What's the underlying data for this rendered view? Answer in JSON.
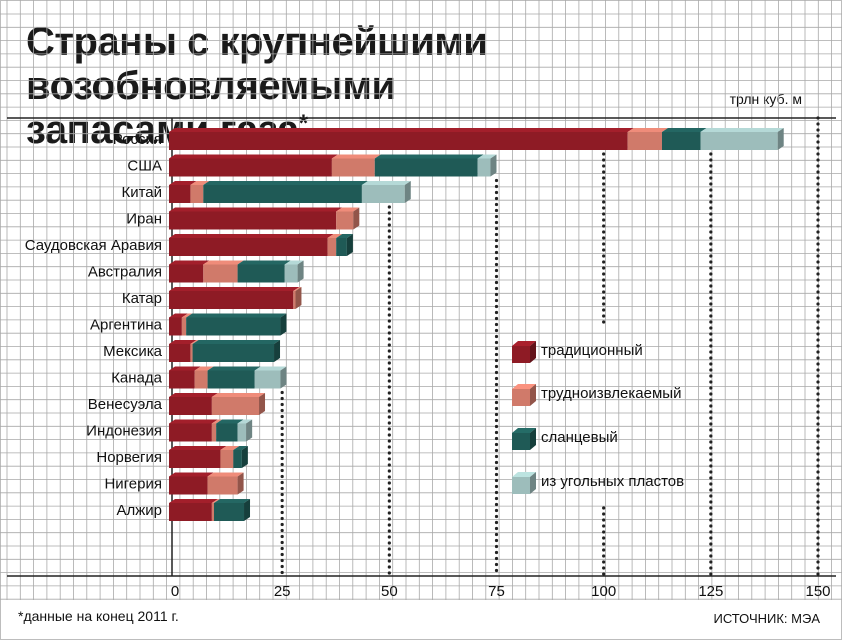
{
  "header": {
    "title_line1": "Страны с крупнейшими возобновляемыми",
    "title_line2": "запасами газа",
    "title_mark": "*",
    "unit": "трлн куб. м"
  },
  "footer": {
    "footnote": "*данные на конец 2011 г.",
    "source": "ИСТОЧНИК: МЭА"
  },
  "colors": {
    "traditional": "#8e1b25",
    "tight": "#d07a6a",
    "shale": "#1f5a56",
    "coalbed": "#9dbdbb",
    "grid": "#a9a9a9"
  },
  "chart_data": {
    "type": "bar",
    "orientation": "horizontal",
    "stacked": true,
    "xlim": [
      0,
      150
    ],
    "xticks": [
      0,
      25,
      50,
      75,
      100,
      125,
      150
    ],
    "legend_position": "right-middle",
    "categories": [
      "Россия",
      "США",
      "Китай",
      "Иран",
      "Саудовская Аравия",
      "Австралия",
      "Катар",
      "Аргентина",
      "Мексика",
      "Канада",
      "Венесуэла",
      "Индонезия",
      "Норвегия",
      "Нигерия",
      "Алжир"
    ],
    "series": [
      {
        "name": "традиционный",
        "color": "#8e1b25",
        "values": [
          107,
          38,
          5,
          39,
          37,
          8,
          29,
          3,
          5,
          6,
          10,
          10,
          12,
          9,
          10
        ]
      },
      {
        "name": "трудноизвлекаемый",
        "color": "#d07a6a",
        "values": [
          8,
          10,
          3,
          4,
          2,
          8,
          0.5,
          1,
          0.5,
          3,
          11,
          1,
          3,
          7,
          0.5
        ]
      },
      {
        "name": "сланцевый",
        "color": "#1f5a56",
        "values": [
          9,
          24,
          37,
          0,
          2.5,
          11,
          0,
          22,
          19,
          11,
          0,
          5,
          2,
          0,
          7
        ]
      },
      {
        "name": "из угольных пластов",
        "color": "#9dbdbb",
        "values": [
          18,
          3,
          10,
          0,
          0,
          3,
          0,
          0,
          0,
          6,
          0,
          2,
          0,
          0,
          0
        ]
      }
    ]
  }
}
